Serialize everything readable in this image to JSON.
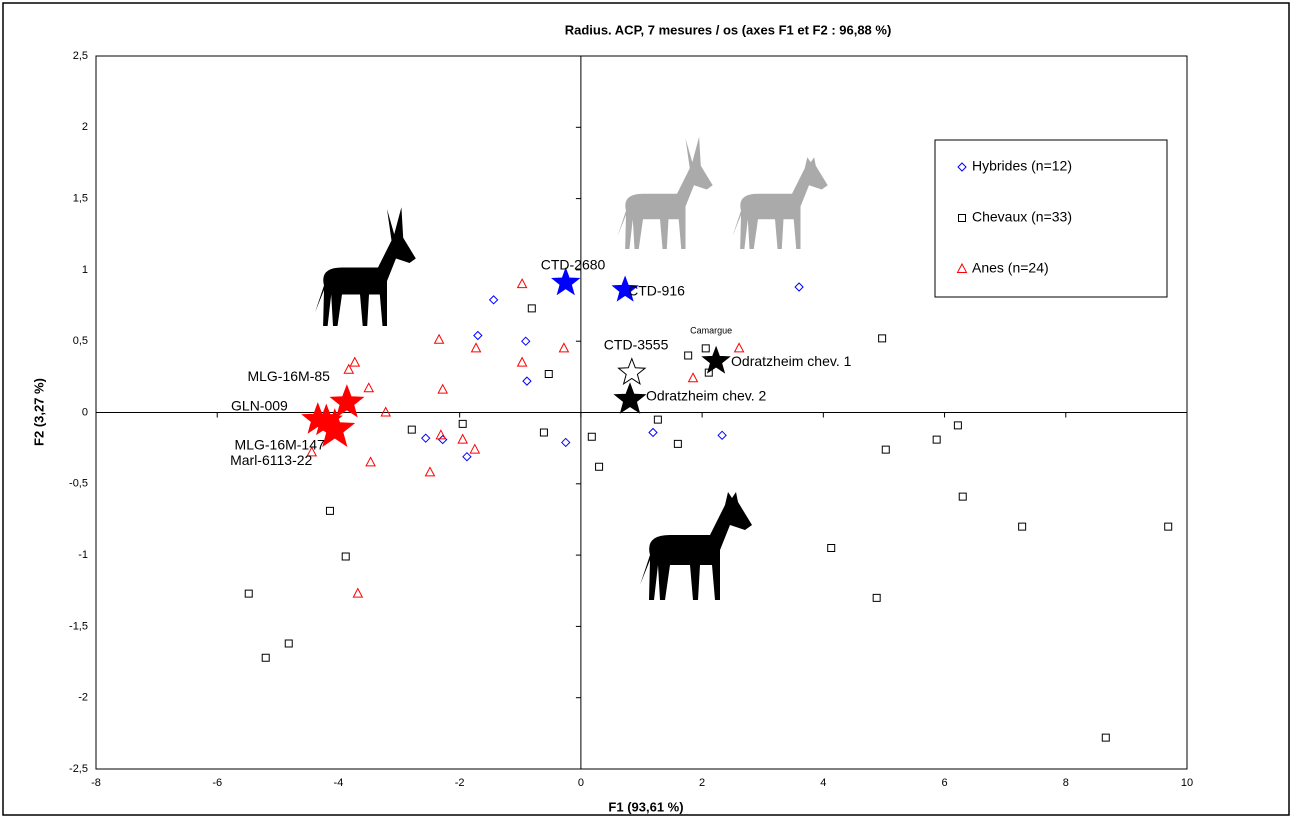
{
  "chart_data": {
    "type": "scatter",
    "title": "Radius. ACP, 7 mesures / os  (axes F1 et F2 : 96,88 %)",
    "xlabel": "F1 (93,61 %)",
    "ylabel": "F2 (3,27 %)",
    "xlim": [
      -8,
      10
    ],
    "ylim": [
      -2.5,
      2.5
    ],
    "xticks": [
      -8,
      -6,
      -4,
      -2,
      0,
      2,
      4,
      6,
      8,
      10
    ],
    "yticks": [
      {
        "value": -2.5,
        "label": "-2,5"
      },
      -2,
      {
        "value": -1.5,
        "label": "-1,5"
      },
      -1,
      {
        "value": -0.5,
        "label": "-0,5"
      },
      0,
      {
        "value": 0.5,
        "label": "0,5"
      },
      1,
      {
        "value": 1.5,
        "label": "1,5"
      },
      2,
      {
        "value": 2.5,
        "label": "2,5"
      }
    ],
    "legend": "upper right",
    "series": [
      {
        "name": "Hybrides (n=12)",
        "color": "#0000ff",
        "marker": "diamond",
        "x": [
          -1.44,
          -1.7,
          -0.91,
          -0.89,
          3.6,
          -2.56,
          -2.28,
          -1.88,
          -0.25,
          1.19,
          2.33
        ],
        "y": [
          0.79,
          0.54,
          0.5,
          0.22,
          0.88,
          -0.18,
          -0.19,
          -0.31,
          -0.21,
          -0.14,
          -0.16
        ]
      },
      {
        "name": "Chevaux (n=33)",
        "color": "#000000",
        "marker": "square",
        "x": [
          -0.81,
          -0.53,
          1.77,
          2.06,
          2.11,
          4.97,
          -2.79,
          -1.95,
          -0.61,
          0.18,
          0.3,
          1.27,
          1.6,
          5.03,
          5.87,
          6.22,
          6.3,
          -4.14,
          -3.88,
          -5.48,
          -5.2,
          -4.82,
          4.13,
          4.88,
          7.28,
          9.69,
          8.66
        ],
        "y": [
          0.73,
          0.27,
          0.4,
          0.45,
          0.28,
          0.52,
          -0.12,
          -0.08,
          -0.14,
          -0.17,
          -0.38,
          -0.05,
          -0.22,
          -0.26,
          -0.19,
          -0.09,
          -0.59,
          -0.69,
          -1.01,
          -1.27,
          -1.72,
          -1.62,
          -0.95,
          -1.3,
          -0.8,
          -0.8,
          -2.28
        ]
      },
      {
        "name": "Anes (n=24)",
        "color": "#ff0000",
        "marker": "triangle",
        "x": [
          -0.97,
          -0.28,
          -0.97,
          -1.73,
          -2.34,
          -2.28,
          -3.73,
          -3.83,
          -3.5,
          -3.22,
          1.85,
          2.61,
          -2.31,
          -1.95,
          -1.75,
          -2.49,
          -4.44,
          -3.47,
          -3.68
        ],
        "y": [
          0.9,
          0.45,
          0.35,
          0.45,
          0.51,
          0.16,
          0.35,
          0.3,
          0.17,
          0.0,
          0.24,
          0.45,
          -0.16,
          -0.19,
          -0.26,
          -0.42,
          -0.28,
          -0.35,
          -1.27
        ]
      }
    ],
    "specimens": [
      {
        "label": "CTD-2680",
        "x": -0.25,
        "y": 0.91,
        "color": "#0000ff",
        "filled": true
      },
      {
        "label": "CTD-916",
        "x": 0.73,
        "y": 0.86,
        "color": "#0000ff",
        "filled": true
      },
      {
        "label": "CTD-3555",
        "x": 0.84,
        "y": 0.28,
        "color": "#000000",
        "filled": false
      },
      {
        "label": "Odratzheim chev. 1",
        "x": 2.23,
        "y": 0.36,
        "color": "#000000",
        "filled": true
      },
      {
        "label": "Odratzheim chev. 2",
        "x": 0.81,
        "y": 0.09,
        "color": "#000000",
        "filled": true
      },
      {
        "label": "MLG-16M-85",
        "x": -3.86,
        "y": 0.07,
        "color": "#ff0000",
        "filled": true
      },
      {
        "label": "GLN-009",
        "x": -4.34,
        "y": -0.05,
        "color": "#ff0000",
        "filled": true
      },
      {
        "label": "MLG-16M-147",
        "x": -4.06,
        "y": -0.12,
        "color": "#ff0000",
        "filled": true
      },
      {
        "label": "Marl-6113-22",
        "x": -4.2,
        "y": -0.06,
        "color": "#ff0000",
        "filled": true
      }
    ],
    "annotations": [
      {
        "text": "Camargue",
        "x": 2.15,
        "y": 0.57
      }
    ]
  }
}
